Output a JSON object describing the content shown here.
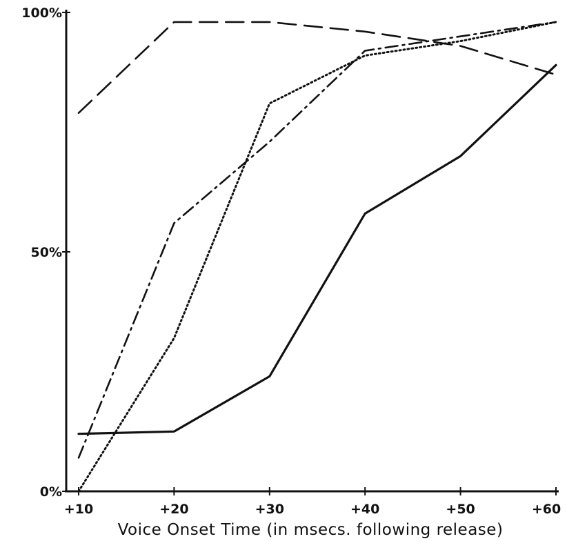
{
  "chart_data": {
    "type": "line",
    "title": "",
    "xlabel": "Voice Onset Time (in msecs. following release)",
    "ylabel": "",
    "x": [
      10,
      20,
      30,
      40,
      50,
      60
    ],
    "x_tick_labels": [
      "+10",
      "+20",
      "+30",
      "+40",
      "+50",
      "+60"
    ],
    "y_tick_labels": [
      "0%",
      "50%",
      "100%"
    ],
    "y_ticks": [
      0,
      50,
      100
    ],
    "xlim": [
      10,
      60
    ],
    "ylim": [
      0,
      100
    ],
    "grid": false,
    "legend": "none",
    "series": [
      {
        "style": "solid",
        "values": [
          12,
          12.5,
          24,
          58,
          70,
          89
        ]
      },
      {
        "style": "dashed",
        "values": [
          79,
          98,
          98,
          96,
          93,
          87
        ]
      },
      {
        "style": "dotted",
        "values": [
          0,
          32,
          81,
          91,
          94,
          98
        ]
      },
      {
        "style": "dash-dot",
        "values": [
          7,
          56,
          73,
          92,
          95,
          98
        ]
      }
    ]
  }
}
